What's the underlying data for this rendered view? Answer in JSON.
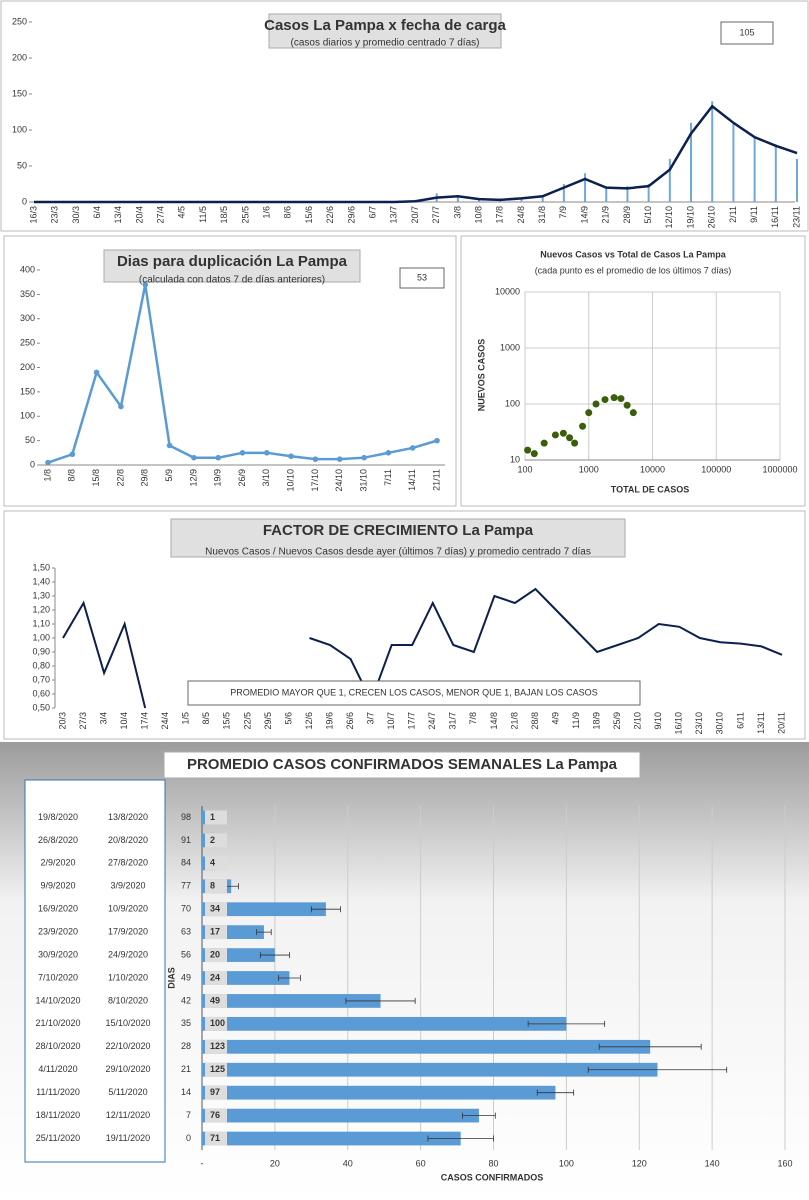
{
  "chart_data": [
    {
      "type": "combo",
      "title": "Casos La Pampa x fecha de carga",
      "subtitle": "(casos diarios y promedio centrado 7 días)",
      "annotation": "105",
      "categories": [
        "16/3",
        "23/3",
        "30/3",
        "6/4",
        "13/4",
        "20/4",
        "27/4",
        "4/5",
        "11/5",
        "18/5",
        "25/5",
        "1/6",
        "8/6",
        "15/6",
        "22/6",
        "29/6",
        "6/7",
        "13/7",
        "20/7",
        "27/7",
        "3/8",
        "10/8",
        "17/8",
        "24/8",
        "31/8",
        "7/9",
        "14/9",
        "21/9",
        "28/9",
        "5/10",
        "12/10",
        "19/10",
        "26/10",
        "2/11",
        "9/11",
        "16/11",
        "23/11"
      ],
      "series": [
        {
          "kind": "bar",
          "color": "#6fa8dc",
          "values": [
            0,
            0,
            0,
            0,
            0,
            0,
            0,
            0,
            0,
            0,
            0,
            0,
            0,
            0,
            0,
            0,
            0,
            0,
            3,
            12,
            8,
            3,
            5,
            6,
            10,
            25,
            40,
            20,
            22,
            25,
            60,
            110,
            140,
            110,
            90,
            80,
            60
          ]
        },
        {
          "kind": "line",
          "color": "#0d1f4f",
          "values": [
            0,
            0,
            0,
            0,
            0,
            0,
            0,
            0,
            0,
            0,
            0,
            0,
            0,
            0,
            0,
            0,
            0,
            0,
            1,
            6,
            8,
            4,
            3,
            5,
            8,
            20,
            32,
            20,
            19,
            22,
            45,
            95,
            133,
            110,
            90,
            78,
            68
          ]
        }
      ],
      "ylim": [
        0,
        250
      ],
      "yticks": [
        0,
        50,
        100,
        150,
        200,
        250
      ],
      "grid": false
    },
    {
      "type": "line",
      "title": "Dias para duplicación La Pampa",
      "subtitle": "(calculada con datos 7 de días anteriores)",
      "annotation": "53",
      "categories": [
        "1/8",
        "8/8",
        "15/8",
        "22/8",
        "29/8",
        "5/9",
        "12/9",
        "19/9",
        "26/9",
        "3/10",
        "10/10",
        "17/10",
        "24/10",
        "31/10",
        "7/11",
        "14/11",
        "21/11"
      ],
      "values": [
        5,
        22,
        190,
        120,
        370,
        40,
        15,
        15,
        25,
        25,
        18,
        12,
        12,
        15,
        25,
        35,
        50
      ],
      "color": "#5b9bd5",
      "ylim": [
        0,
        400
      ],
      "yticks": [
        0,
        50,
        100,
        150,
        200,
        250,
        300,
        350,
        400
      ],
      "grid": false
    },
    {
      "type": "scatter",
      "title": "Nuevos Casos vs Total de Casos La Pampa",
      "subtitle": "(cada punto es el promedio de los últimos 7 días)",
      "x_label": "TOTAL DE CASOS",
      "y_label": "NUEVOS CASOS",
      "color": "#3a5f0b",
      "x": [
        110,
        140,
        200,
        300,
        400,
        500,
        600,
        800,
        1000,
        1300,
        1800,
        2500,
        3200,
        4000,
        5000
      ],
      "values": [
        15,
        13,
        20,
        28,
        30,
        25,
        20,
        40,
        70,
        100,
        120,
        130,
        125,
        95,
        70
      ],
      "log_x": true,
      "log_y": true,
      "xlim": [
        100,
        1000000
      ],
      "xticks": [
        100,
        1000,
        10000,
        100000,
        1000000
      ],
      "ylim": [
        10,
        10000
      ],
      "yticks": [
        10,
        100,
        1000,
        10000
      ],
      "grid": true
    },
    {
      "type": "line",
      "title": "FACTOR DE CRECIMIENTO La Pampa",
      "subtitle": "Nuevos Casos  / Nuevos Casos desde ayer (últimos 7 días) y promedio  centrado 7 días",
      "annotation": "PROMEDIO MAYOR QUE 1, CRECEN LOS CASOS, MENOR QUE 1, BAJAN LOS CASOS",
      "categories": [
        "20/3",
        "27/3",
        "3/4",
        "10/4",
        "17/4",
        "24/4",
        "1/5",
        "8/5",
        "15/5",
        "22/5",
        "29/5",
        "5/6",
        "12/6",
        "19/6",
        "26/6",
        "3/7",
        "10/7",
        "17/7",
        "24/7",
        "31/7",
        "7/8",
        "14/8",
        "21/8",
        "28/8",
        "4/9",
        "11/9",
        "18/9",
        "25/9",
        "2/10",
        "9/10",
        "16/10",
        "23/10",
        "30/10",
        "6/11",
        "13/11",
        "20/11"
      ],
      "values": [
        1.0,
        1.25,
        0.75,
        1.1,
        0.5,
        null,
        null,
        null,
        null,
        null,
        null,
        null,
        1.0,
        0.95,
        0.85,
        0.55,
        0.95,
        0.95,
        1.25,
        0.95,
        0.9,
        1.3,
        1.25,
        1.35,
        1.2,
        1.05,
        0.9,
        0.95,
        1.0,
        1.1,
        1.08,
        1.0,
        0.97,
        0.96,
        0.94,
        0.88
      ],
      "color": "#0d1f4f",
      "ylim": [
        0.5,
        1.5
      ],
      "yticks": [
        {
          "value": 0.5,
          "label": "0,50"
        },
        {
          "value": 0.6,
          "label": "0,60"
        },
        {
          "value": 0.7,
          "label": "0,70"
        },
        {
          "value": 0.8,
          "label": "0,80"
        },
        {
          "value": 0.9,
          "label": "0,90"
        },
        {
          "value": 1.0,
          "label": "1,00"
        },
        {
          "value": 1.1,
          "label": "1,10"
        },
        {
          "value": 1.2,
          "label": "1,20"
        },
        {
          "value": 1.3,
          "label": "1,30"
        },
        {
          "value": 1.4,
          "label": "1,40"
        },
        {
          "value": 1.5,
          "label": "1,50"
        }
      ],
      "grid": false
    },
    {
      "type": "hbar",
      "title": "PROMEDIO CASOS CONFIRMADOS SEMANALES La Pampa",
      "x_label": "CASOS CONFIRMADOS",
      "y_label": "DIAS",
      "date_ranges": [
        [
          "19/8/2020",
          "13/8/2020"
        ],
        [
          "26/8/2020",
          "20/8/2020"
        ],
        [
          "2/9/2020",
          "27/8/2020"
        ],
        [
          "9/9/2020",
          "3/9/2020"
        ],
        [
          "16/9/2020",
          "10/9/2020"
        ],
        [
          "23/9/2020",
          "17/9/2020"
        ],
        [
          "30/9/2020",
          "24/9/2020"
        ],
        [
          "7/10/2020",
          "1/10/2020"
        ],
        [
          "14/10/2020",
          "8/10/2020"
        ],
        [
          "21/10/2020",
          "15/10/2020"
        ],
        [
          "28/10/2020",
          "22/10/2020"
        ],
        [
          "4/11/2020",
          "29/10/2020"
        ],
        [
          "11/11/2020",
          "5/11/2020"
        ],
        [
          "18/11/2020",
          "12/11/2020"
        ],
        [
          "25/11/2020",
          "19/11/2020"
        ]
      ],
      "categories": [
        98,
        91,
        84,
        77,
        70,
        63,
        56,
        49,
        42,
        35,
        28,
        21,
        14,
        7,
        0
      ],
      "values": [
        1,
        2,
        4,
        8,
        34,
        17,
        20,
        24,
        49,
        100,
        123,
        125,
        97,
        76,
        71
      ],
      "errors": [
        0,
        0,
        0,
        2,
        4,
        2,
        4,
        3,
        9.5,
        10.5,
        14,
        19,
        5,
        4.5,
        9
      ],
      "color": "#5b9bd5",
      "xlim": [
        0,
        160
      ],
      "xticks": [
        {
          "value": 0,
          "label": "-"
        },
        20,
        40,
        60,
        80,
        100,
        120,
        140,
        160
      ],
      "grid": true
    }
  ]
}
